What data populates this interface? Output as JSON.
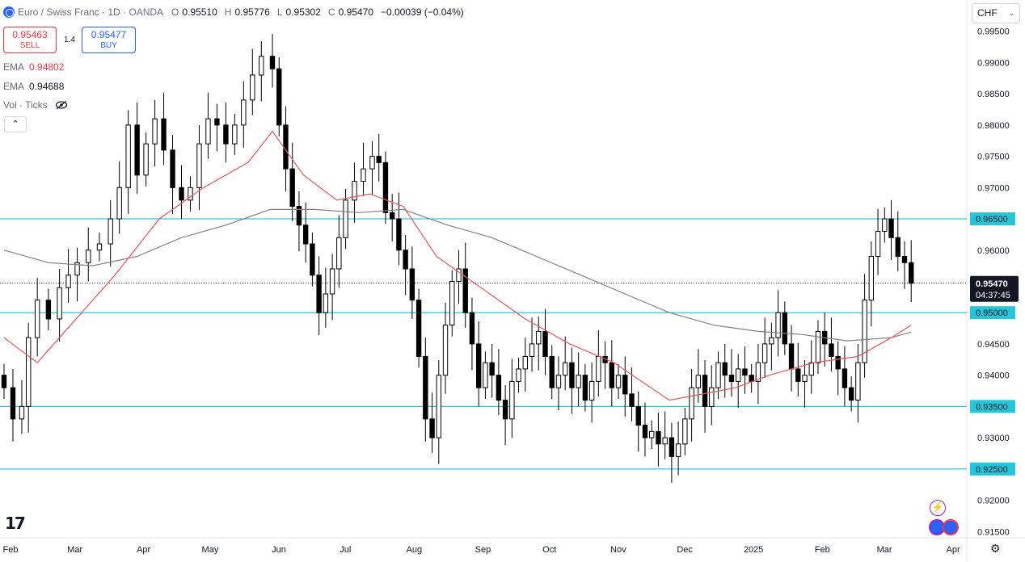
{
  "header": {
    "symbol": "Euro / Swiss Franc · 1D · OANDA",
    "open_label": "O",
    "open": "0.95510",
    "high_label": "H",
    "high": "0.95776",
    "low_label": "L",
    "low": "0.95302",
    "close_label": "C",
    "close": "0.95470",
    "change": "−0.00039 (−0.04%)"
  },
  "trade": {
    "sell_price": "0.95463",
    "sell_label": "SELL",
    "spread": "1.4",
    "buy_price": "0.95477",
    "buy_label": "BUY"
  },
  "indicators": {
    "ema1_label": "EMA",
    "ema1_value": "0.94802",
    "ema2_label": "EMA",
    "ema2_value": "0.94688",
    "vol_label": "Vol · Ticks"
  },
  "currency": "CHF",
  "logo_text": "17",
  "colors": {
    "up": "#ffffff",
    "down": "#000000",
    "wick": "#000000",
    "ema_fast": "#e05a5a",
    "ema_slow": "#808080",
    "hline": "#00bcd4",
    "hlabel_bg": "#26c6da",
    "price_tag": "#131722"
  },
  "chart_data": {
    "type": "candlestick",
    "ylim": [
      0.914,
      1.0
    ],
    "y_ticks": [
      "0.99500",
      "0.99000",
      "0.98500",
      "0.98000",
      "0.97500",
      "0.97000",
      "0.96500",
      "0.96000",
      "0.95500",
      "0.95000",
      "0.94500",
      "0.94000",
      "0.93500",
      "0.93000",
      "0.92500",
      "0.92000",
      "0.91500"
    ],
    "y_tick_values": [
      0.995,
      0.99,
      0.985,
      0.98,
      0.975,
      0.97,
      0.965,
      0.96,
      0.955,
      0.95,
      0.945,
      0.94,
      0.935,
      0.93,
      0.925,
      0.92,
      0.915
    ],
    "x_labels": [
      "Feb",
      "Mar",
      "Apr",
      "May",
      "Jun",
      "Jul",
      "Aug",
      "Sep",
      "Oct",
      "Nov",
      "Dec",
      "2025",
      "Feb",
      "Mar",
      "Apr"
    ],
    "x_label_days": [
      0,
      29,
      60,
      90,
      121,
      151,
      182,
      213,
      243,
      274,
      304,
      335,
      366,
      394,
      425
    ],
    "x_range_days": [
      0,
      445
    ],
    "current_price": "0.95470",
    "current_value": 0.9547,
    "countdown": "04:37:45",
    "horizontal_levels": [
      {
        "value": 0.965,
        "label": "0.96500"
      },
      {
        "value": 0.95,
        "label": "0.95000"
      },
      {
        "value": 0.935,
        "label": "0.93500"
      },
      {
        "value": 0.925,
        "label": "0.92500"
      }
    ],
    "closes": [
      [
        0,
        0.938
      ],
      [
        4,
        0.933
      ],
      [
        8,
        0.935
      ],
      [
        11,
        0.946
      ],
      [
        15,
        0.952
      ],
      [
        20,
        0.949
      ],
      [
        25,
        0.954
      ],
      [
        29,
        0.956
      ],
      [
        33,
        0.958
      ],
      [
        38,
        0.96
      ],
      [
        43,
        0.961
      ],
      [
        48,
        0.965
      ],
      [
        52,
        0.97
      ],
      [
        56,
        0.98
      ],
      [
        60,
        0.972
      ],
      [
        64,
        0.977
      ],
      [
        68,
        0.981
      ],
      [
        72,
        0.976
      ],
      [
        76,
        0.97
      ],
      [
        80,
        0.968
      ],
      [
        84,
        0.97
      ],
      [
        88,
        0.977
      ],
      [
        92,
        0.981
      ],
      [
        96,
        0.98
      ],
      [
        100,
        0.977
      ],
      [
        104,
        0.98
      ],
      [
        108,
        0.984
      ],
      [
        112,
        0.988
      ],
      [
        116,
        0.991
      ],
      [
        121,
        0.989
      ],
      [
        124,
        0.98
      ],
      [
        127,
        0.973
      ],
      [
        130,
        0.967
      ],
      [
        133,
        0.964
      ],
      [
        136,
        0.961
      ],
      [
        139,
        0.956
      ],
      [
        142,
        0.95
      ],
      [
        145,
        0.953
      ],
      [
        148,
        0.957
      ],
      [
        151,
        0.962
      ],
      [
        154,
        0.968
      ],
      [
        158,
        0.971
      ],
      [
        162,
        0.973
      ],
      [
        166,
        0.975
      ],
      [
        169,
        0.974
      ],
      [
        172,
        0.966
      ],
      [
        175,
        0.965
      ],
      [
        178,
        0.96
      ],
      [
        181,
        0.957
      ],
      [
        184,
        0.952
      ],
      [
        187,
        0.943
      ],
      [
        190,
        0.933
      ],
      [
        193,
        0.93
      ],
      [
        196,
        0.94
      ],
      [
        199,
        0.948
      ],
      [
        202,
        0.955
      ],
      [
        205,
        0.957
      ],
      [
        208,
        0.95
      ],
      [
        211,
        0.945
      ],
      [
        214,
        0.938
      ],
      [
        217,
        0.942
      ],
      [
        220,
        0.94
      ],
      [
        223,
        0.936
      ],
      [
        226,
        0.933
      ],
      [
        229,
        0.939
      ],
      [
        232,
        0.941
      ],
      [
        235,
        0.943
      ],
      [
        238,
        0.945
      ],
      [
        241,
        0.947
      ],
      [
        244,
        0.943
      ],
      [
        247,
        0.938
      ],
      [
        250,
        0.94
      ],
      [
        253,
        0.942
      ],
      [
        256,
        0.938
      ],
      [
        259,
        0.94
      ],
      [
        262,
        0.936
      ],
      [
        265,
        0.939
      ],
      [
        268,
        0.943
      ],
      [
        271,
        0.942
      ],
      [
        274,
        0.938
      ],
      [
        277,
        0.94
      ],
      [
        280,
        0.937
      ],
      [
        283,
        0.935
      ],
      [
        286,
        0.932
      ],
      [
        289,
        0.93
      ],
      [
        292,
        0.931
      ],
      [
        295,
        0.929
      ],
      [
        298,
        0.93
      ],
      [
        301,
        0.927
      ],
      [
        304,
        0.929
      ],
      [
        307,
        0.933
      ],
      [
        310,
        0.938
      ],
      [
        313,
        0.94
      ],
      [
        316,
        0.935
      ],
      [
        319,
        0.938
      ],
      [
        322,
        0.942
      ],
      [
        325,
        0.94
      ],
      [
        328,
        0.939
      ],
      [
        331,
        0.941
      ],
      [
        334,
        0.94
      ],
      [
        337,
        0.939
      ],
      [
        340,
        0.942
      ],
      [
        343,
        0.945
      ],
      [
        346,
        0.946
      ],
      [
        349,
        0.95
      ],
      [
        352,
        0.945
      ],
      [
        355,
        0.941
      ],
      [
        358,
        0.939
      ],
      [
        361,
        0.94
      ],
      [
        364,
        0.942
      ],
      [
        367,
        0.947
      ],
      [
        370,
        0.945
      ],
      [
        373,
        0.943
      ],
      [
        376,
        0.941
      ],
      [
        379,
        0.938
      ],
      [
        382,
        0.936
      ],
      [
        385,
        0.942
      ],
      [
        388,
        0.952
      ],
      [
        391,
        0.959
      ],
      [
        394,
        0.963
      ],
      [
        397,
        0.965
      ],
      [
        400,
        0.962
      ],
      [
        403,
        0.959
      ],
      [
        406,
        0.958
      ],
      [
        409,
        0.9547
      ]
    ],
    "ema_fast": [
      [
        0,
        0.946
      ],
      [
        15,
        0.942
      ],
      [
        30,
        0.948
      ],
      [
        50,
        0.956
      ],
      [
        70,
        0.965
      ],
      [
        90,
        0.97
      ],
      [
        110,
        0.974
      ],
      [
        121,
        0.979
      ],
      [
        135,
        0.972
      ],
      [
        150,
        0.968
      ],
      [
        165,
        0.969
      ],
      [
        180,
        0.967
      ],
      [
        195,
        0.959
      ],
      [
        215,
        0.954
      ],
      [
        235,
        0.949
      ],
      [
        255,
        0.945
      ],
      [
        275,
        0.942
      ],
      [
        300,
        0.936
      ],
      [
        315,
        0.937
      ],
      [
        330,
        0.938
      ],
      [
        345,
        0.94
      ],
      [
        365,
        0.942
      ],
      [
        385,
        0.943
      ],
      [
        400,
        0.946
      ],
      [
        409,
        0.948
      ]
    ],
    "ema_slow": [
      [
        0,
        0.96
      ],
      [
        20,
        0.958
      ],
      [
        40,
        0.9575
      ],
      [
        60,
        0.959
      ],
      [
        80,
        0.962
      ],
      [
        100,
        0.964
      ],
      [
        120,
        0.9665
      ],
      [
        140,
        0.9665
      ],
      [
        160,
        0.966
      ],
      [
        180,
        0.9665
      ],
      [
        200,
        0.964
      ],
      [
        220,
        0.962
      ],
      [
        240,
        0.959
      ],
      [
        260,
        0.956
      ],
      [
        280,
        0.953
      ],
      [
        300,
        0.95
      ],
      [
        320,
        0.948
      ],
      [
        340,
        0.947
      ],
      [
        360,
        0.9465
      ],
      [
        380,
        0.9455
      ],
      [
        400,
        0.946
      ],
      [
        409,
        0.9469
      ]
    ]
  }
}
